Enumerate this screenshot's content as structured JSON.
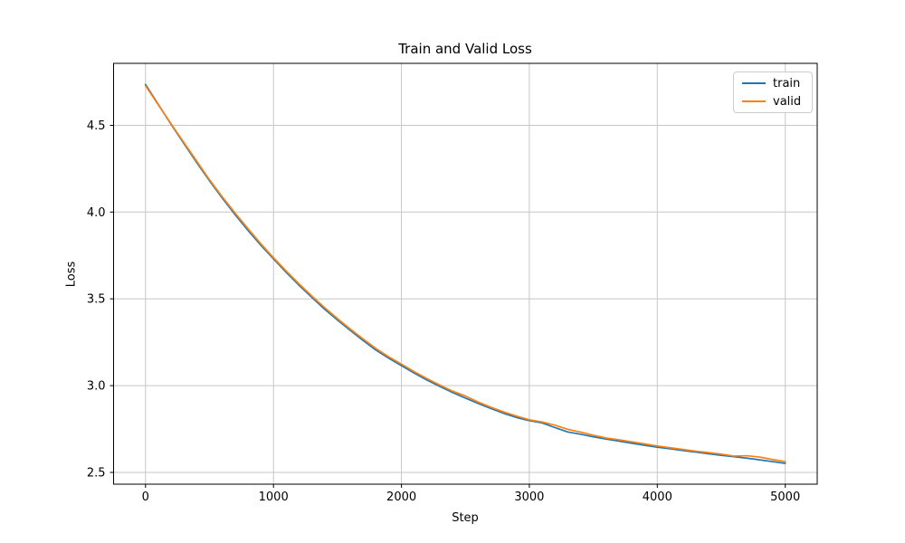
{
  "chart_data": {
    "type": "line",
    "title": "Train and Valid Loss",
    "xlabel": "Step",
    "ylabel": "Loss",
    "grid": true,
    "legend_position": "upper right",
    "xlim": [
      -250,
      5250
    ],
    "ylim": [
      2.432,
      4.857
    ],
    "x_ticks": [
      0,
      1000,
      2000,
      3000,
      4000,
      5000
    ],
    "x_tick_labels": [
      "0",
      "1000",
      "2000",
      "3000",
      "4000",
      "5000"
    ],
    "y_ticks": [
      2.5,
      3.0,
      3.5,
      4.0,
      4.5
    ],
    "y_tick_labels": [
      "2.5",
      "3.0",
      "3.5",
      "4.0",
      "4.5"
    ],
    "x": [
      0,
      100,
      200,
      300,
      400,
      500,
      600,
      700,
      800,
      900,
      1000,
      1100,
      1200,
      1300,
      1400,
      1500,
      1600,
      1700,
      1800,
      1900,
      2000,
      2100,
      2200,
      2300,
      2400,
      2500,
      2600,
      2700,
      2800,
      2900,
      3000,
      3100,
      3200,
      3300,
      3400,
      3500,
      3600,
      3700,
      3800,
      3900,
      4000,
      4100,
      4200,
      4300,
      4400,
      4500,
      4600,
      4700,
      4800,
      4900,
      5000
    ],
    "series": [
      {
        "name": "train",
        "color": "#1f77b4",
        "values": [
          4.735,
          4.62,
          4.505,
          4.395,
          4.285,
          4.18,
          4.08,
          3.985,
          3.895,
          3.81,
          3.73,
          3.652,
          3.578,
          3.508,
          3.44,
          3.378,
          3.318,
          3.26,
          3.205,
          3.158,
          3.115,
          3.072,
          3.032,
          2.995,
          2.96,
          2.928,
          2.897,
          2.868,
          2.84,
          2.816,
          2.798,
          2.785,
          2.758,
          2.733,
          2.72,
          2.705,
          2.692,
          2.68,
          2.668,
          2.656,
          2.645,
          2.636,
          2.626,
          2.617,
          2.607,
          2.598,
          2.59,
          2.582,
          2.572,
          2.562,
          2.552
        ]
      },
      {
        "name": "valid",
        "color": "#ff7f0e",
        "values": [
          4.728,
          4.617,
          4.508,
          4.4,
          4.293,
          4.186,
          4.087,
          3.994,
          3.905,
          3.818,
          3.737,
          3.66,
          3.586,
          3.516,
          3.449,
          3.386,
          3.326,
          3.269,
          3.214,
          3.166,
          3.124,
          3.08,
          3.04,
          3.003,
          2.968,
          2.94,
          2.905,
          2.875,
          2.848,
          2.824,
          2.803,
          2.79,
          2.772,
          2.748,
          2.732,
          2.714,
          2.698,
          2.688,
          2.676,
          2.664,
          2.652,
          2.642,
          2.632,
          2.622,
          2.614,
          2.605,
          2.594,
          2.596,
          2.588,
          2.574,
          2.562
        ]
      }
    ],
    "style": {
      "grid_color": "#c6c6c6",
      "spine_color": "#000000",
      "tick_color": "#000000",
      "background": "#ffffff",
      "line_width": 1.7
    }
  }
}
